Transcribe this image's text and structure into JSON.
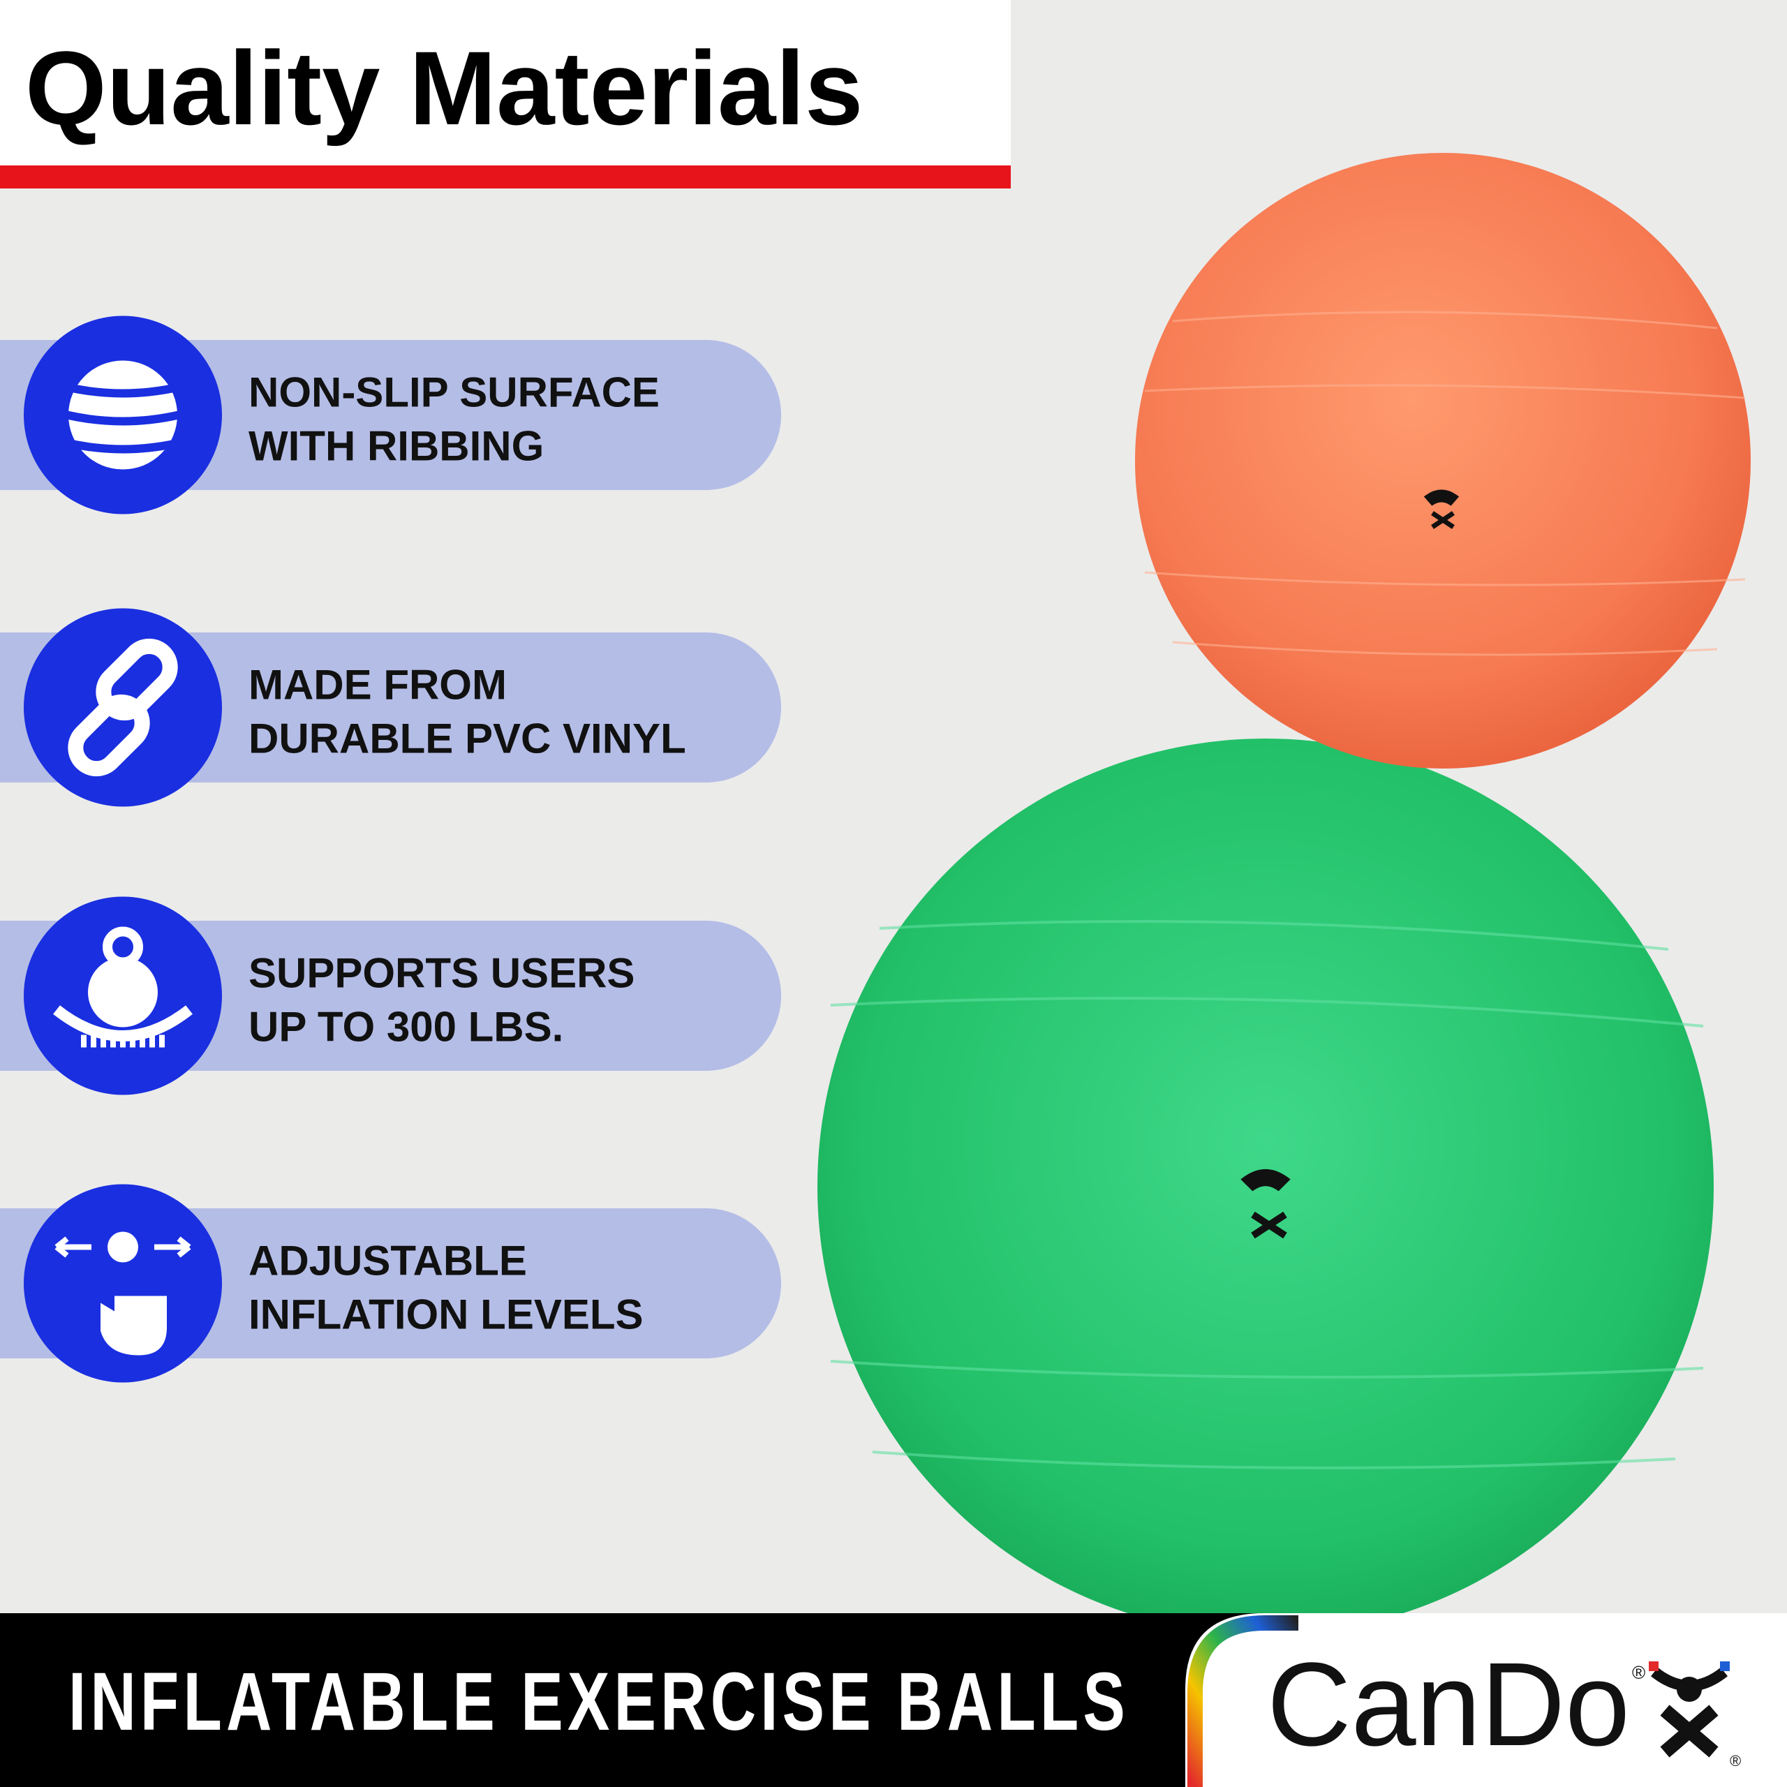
{
  "header": {
    "title": "Quality Materials"
  },
  "features": [
    {
      "lines": [
        "NON-SLIP SURFACE",
        "WITH RIBBING"
      ]
    },
    {
      "lines": [
        "MADE FROM",
        "DURABLE PVC VINYL"
      ]
    },
    {
      "lines": [
        "SUPPORTS USERS",
        "UP TO 300 LBS."
      ]
    },
    {
      "lines": [
        "ADJUSTABLE",
        "INFLATION LEVELS"
      ]
    }
  ],
  "footer": {
    "tagline": "INFLATABLE EXERCISE BALLS",
    "brand": "CanDo",
    "registered": "®"
  }
}
